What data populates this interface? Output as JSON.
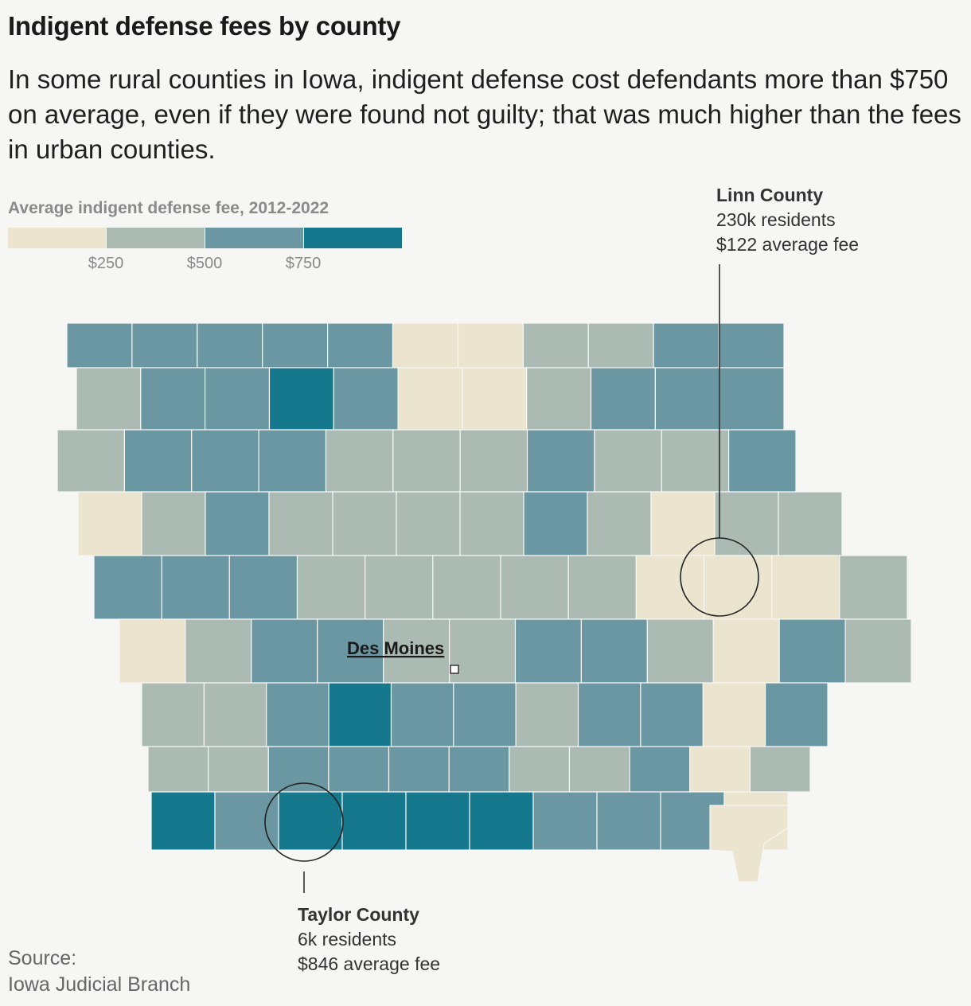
{
  "title": "Indigent defense fees by county",
  "subtitle": "In some rural counties in Iowa, indigent defense cost defendants more than $750 on average, even if they were found not guilty; that was much higher than the fees in urban counties.",
  "legend": {
    "title": "Average indigent defense fee, 2012-2022",
    "ticks": [
      "$250",
      "$500",
      "$750"
    ],
    "colors": [
      "#ebe4cf",
      "#abbbb3",
      "#6a97a1",
      "#16788d"
    ]
  },
  "city": {
    "name": "Des Moines"
  },
  "callouts": {
    "linn": {
      "name": "Linn County",
      "residents": "230k residents",
      "fee": "$122 average fee"
    },
    "taylor": {
      "name": "Taylor County",
      "residents": "6k residents",
      "fee": "$846 average fee"
    }
  },
  "source": {
    "label": "Source:",
    "name": "Iowa Judicial Branch"
  },
  "counties": [
    {
      "row": 0,
      "cells": [
        3,
        3,
        3,
        3,
        3,
        1,
        1,
        2,
        2,
        3,
        3
      ]
    },
    {
      "row": 1,
      "cells": [
        2,
        3,
        3,
        4,
        3,
        1,
        1,
        2,
        3,
        3,
        3
      ]
    },
    {
      "row": 2,
      "cells": [
        2,
        3,
        3,
        3,
        2,
        2,
        2,
        3,
        2,
        2,
        3
      ]
    },
    {
      "row": 3,
      "cells": [
        1,
        2,
        3,
        2,
        2,
        2,
        2,
        3,
        2,
        1,
        2,
        2
      ]
    },
    {
      "row": 4,
      "cells": [
        3,
        3,
        3,
        2,
        2,
        2,
        2,
        2,
        1,
        1,
        1,
        2
      ]
    },
    {
      "row": 5,
      "cells": [
        1,
        2,
        3,
        3,
        2,
        2,
        3,
        3,
        2,
        1,
        3,
        2
      ]
    },
    {
      "row": 6,
      "cells": [
        2,
        2,
        3,
        4,
        3,
        3,
        2,
        3,
        3,
        1,
        3
      ]
    },
    {
      "row": 7,
      "cells": [
        2,
        2,
        3,
        3,
        3,
        3,
        2,
        2,
        3,
        1,
        2
      ]
    },
    {
      "row": 8,
      "cells": [
        4,
        3,
        4,
        4,
        4,
        4,
        3,
        3,
        3,
        1
      ]
    }
  ]
}
